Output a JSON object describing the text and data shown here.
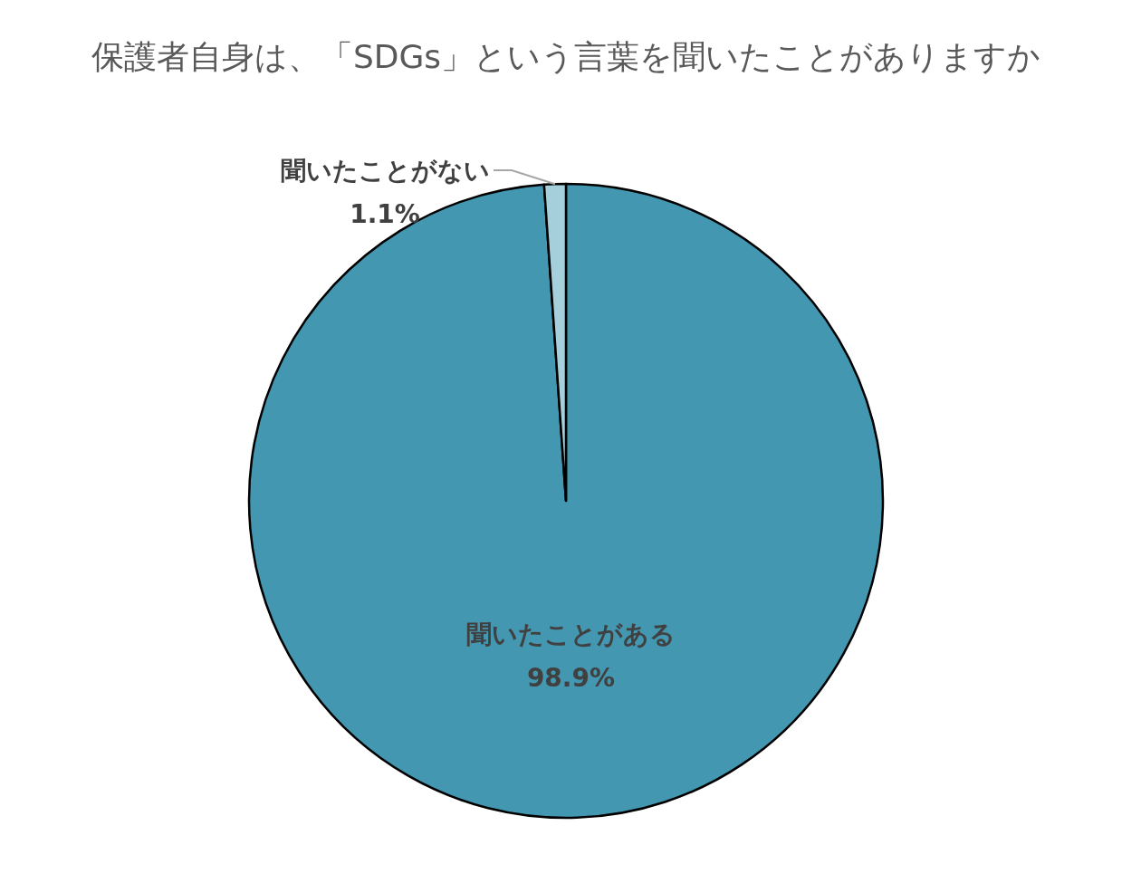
{
  "chart_data": {
    "type": "pie",
    "title": "保護者自身は、「SDGs」という言葉を聞いたことがありますか",
    "categories": [
      "聞いたことがある",
      "聞いたことがない"
    ],
    "values": [
      98.9,
      1.1
    ],
    "colors": [
      "#4397b0",
      "#a6cfdc"
    ],
    "value_labels": [
      "98.9%",
      "1.1%"
    ]
  }
}
